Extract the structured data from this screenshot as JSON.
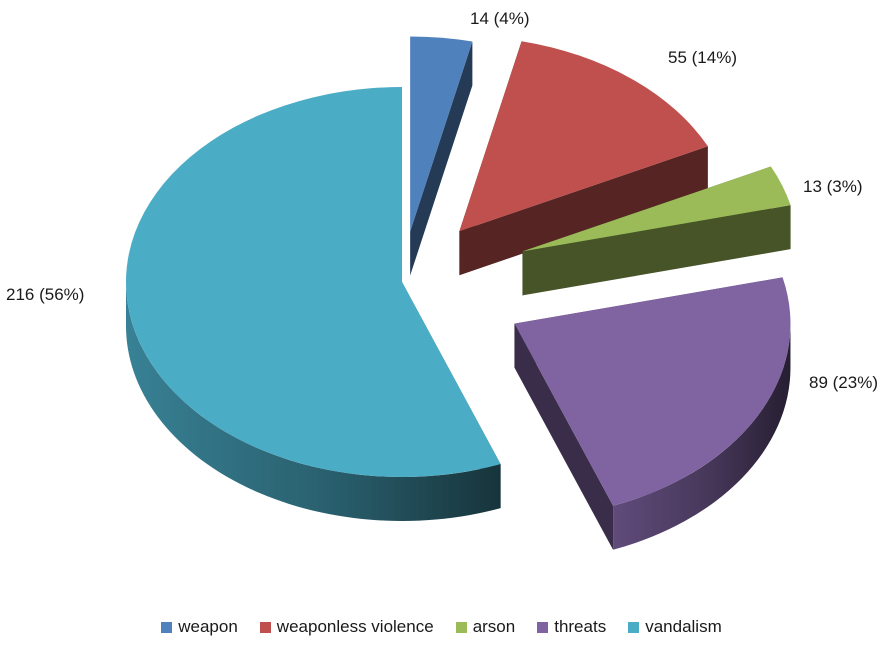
{
  "chart_data": {
    "type": "pie",
    "style": "3d-exploded",
    "title": "",
    "slices": [
      {
        "name": "weapon",
        "value": 14,
        "percent": 4,
        "label": "14 (4%)",
        "color": "#4f81bd"
      },
      {
        "name": "weaponless violence",
        "value": 55,
        "percent": 14,
        "label": "55 (14%)",
        "color": "#c0504d"
      },
      {
        "name": "arson",
        "value": 13,
        "percent": 3,
        "label": "13 (3%)",
        "color": "#9bbb59"
      },
      {
        "name": "threats",
        "value": 89,
        "percent": 23,
        "label": "89 (23%)",
        "color": "#8064a2"
      },
      {
        "name": "vandalism",
        "value": 216,
        "percent": 56,
        "label": "216 (56%)",
        "color": "#4bacc6"
      }
    ],
    "legend_position": "bottom"
  }
}
